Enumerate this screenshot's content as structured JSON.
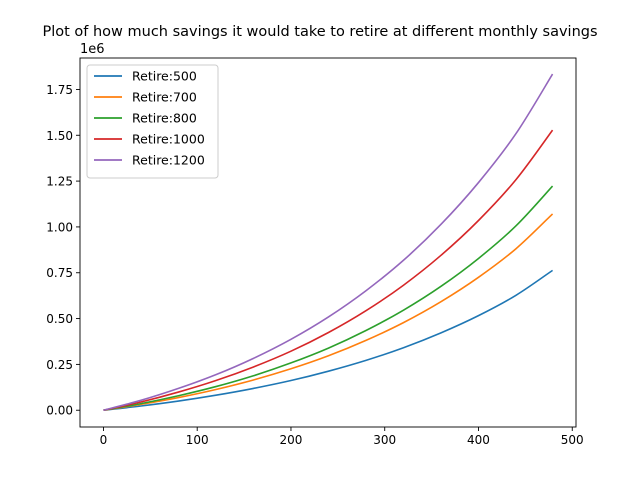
{
  "chart_data": {
    "type": "line",
    "title": "Plot of how much savings it would take to retire at different monthly savings",
    "xlabel": "",
    "ylabel": "",
    "y_offset_label": "1e6",
    "xlim": [
      -25,
      504
    ],
    "ylim": [
      -0.0915,
      1.9215
    ],
    "x_ticks": [
      0,
      100,
      200,
      300,
      400,
      500
    ],
    "x_tick_labels": [
      "0",
      "100",
      "200",
      "300",
      "400",
      "500"
    ],
    "y_ticks": [
      0.0,
      0.25,
      0.5,
      0.75,
      1.0,
      1.25,
      1.5,
      1.75
    ],
    "y_tick_labels": [
      "0.00",
      "0.25",
      "0.50",
      "0.75",
      "1.00",
      "1.25",
      "1.50",
      "1.75"
    ],
    "grid": false,
    "legend_position": "upper-left",
    "x": [
      0,
      40,
      80,
      120,
      160,
      200,
      240,
      280,
      320,
      360,
      400,
      440,
      479
    ],
    "series": [
      {
        "name": "Retire:500",
        "color": "#1f77b4",
        "values": [
          0,
          0.023,
          0.05,
          0.082,
          0.119,
          0.162,
          0.213,
          0.272,
          0.341,
          0.422,
          0.516,
          0.627,
          0.763
        ]
      },
      {
        "name": "Retire:700",
        "color": "#ff7f0e",
        "values": [
          0,
          0.032,
          0.069,
          0.113,
          0.165,
          0.226,
          0.297,
          0.381,
          0.478,
          0.592,
          0.725,
          0.881,
          1.071
        ]
      },
      {
        "name": "Retire:800",
        "color": "#2ca02c",
        "values": [
          0,
          0.036,
          0.079,
          0.129,
          0.188,
          0.258,
          0.339,
          0.435,
          0.546,
          0.676,
          0.828,
          1.006,
          1.223
        ]
      },
      {
        "name": "Retire:1000",
        "color": "#d62728",
        "values": [
          0,
          0.045,
          0.099,
          0.162,
          0.236,
          0.322,
          0.424,
          0.543,
          0.682,
          0.845,
          1.035,
          1.258,
          1.528
        ]
      },
      {
        "name": "Retire:1200",
        "color": "#9467bd",
        "values": [
          0,
          0.054,
          0.119,
          0.194,
          0.283,
          0.387,
          0.509,
          0.652,
          0.818,
          1.014,
          1.242,
          1.509,
          1.834
        ]
      }
    ]
  }
}
